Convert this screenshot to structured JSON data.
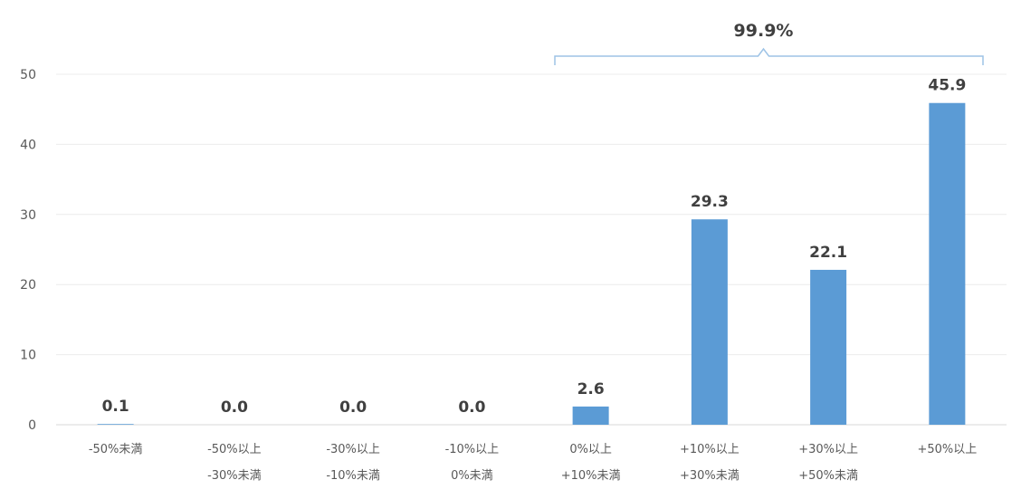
{
  "chart_data": {
    "type": "bar",
    "categories": [
      [
        "-50%未満"
      ],
      [
        "-50%以上",
        "-30%未満"
      ],
      [
        "-30%以上",
        "-10%未満"
      ],
      [
        "-10%以上",
        "0%未満"
      ],
      [
        "0%以上",
        "+10%未満"
      ],
      [
        "+10%以上",
        "+30%未満"
      ],
      [
        "+30%以上",
        "+50%未満"
      ],
      [
        "+50%以上"
      ]
    ],
    "values": [
      0.1,
      0.0,
      0.0,
      0.0,
      2.6,
      29.3,
      22.1,
      45.9
    ],
    "data_labels": [
      "0.1",
      "0.0",
      "0.0",
      "0.0",
      "2.6",
      "29.3",
      "22.1",
      "45.9"
    ],
    "ylim": [
      0,
      50
    ],
    "yticks": [
      0,
      10,
      20,
      30,
      40,
      50
    ],
    "grid": true,
    "bar_color": "#5b9bd5",
    "annotation": {
      "label": "99.9%",
      "from_category": 4,
      "to_category": 7,
      "color": "#9dc3e6"
    }
  }
}
